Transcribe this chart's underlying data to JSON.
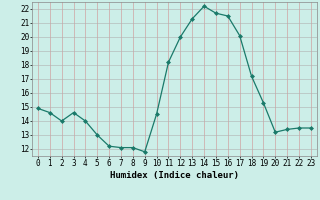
{
  "x": [
    0,
    1,
    2,
    3,
    4,
    5,
    6,
    7,
    8,
    9,
    10,
    11,
    12,
    13,
    14,
    15,
    16,
    17,
    18,
    19,
    20,
    21,
    22,
    23
  ],
  "y": [
    14.9,
    14.6,
    14.0,
    14.6,
    14.0,
    13.0,
    12.2,
    12.1,
    12.1,
    11.8,
    14.5,
    18.2,
    20.0,
    21.3,
    22.2,
    21.7,
    21.5,
    20.1,
    17.2,
    15.3,
    13.2,
    13.4,
    13.5,
    13.5
  ],
  "line_color": "#1a7a6a",
  "marker": "D",
  "markersize": 2.0,
  "linewidth": 0.9,
  "bg_color": "#cceee8",
  "grid_color": "#b0b0b0",
  "xlabel": "Humidex (Indice chaleur)",
  "xlim": [
    -0.5,
    23.5
  ],
  "ylim": [
    11.5,
    22.5
  ],
  "yticks": [
    12,
    13,
    14,
    15,
    16,
    17,
    18,
    19,
    20,
    21,
    22
  ],
  "xticks": [
    0,
    1,
    2,
    3,
    4,
    5,
    6,
    7,
    8,
    9,
    10,
    11,
    12,
    13,
    14,
    15,
    16,
    17,
    18,
    19,
    20,
    21,
    22,
    23
  ],
  "xlabel_fontsize": 6.5,
  "tick_fontsize": 5.5
}
